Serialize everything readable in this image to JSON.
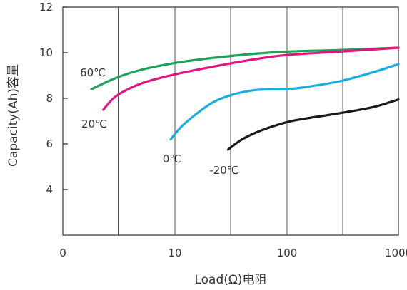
{
  "chart_data": {
    "type": "line",
    "title": "",
    "xlabel": "Load(Ω)电阻",
    "ylabel": "Capacity(Ah)容量",
    "x_scale": "log",
    "x_tick_labels": [
      "0",
      "10",
      "100",
      "1000"
    ],
    "y_tick_labels": [
      "4",
      "6",
      "8",
      "10",
      "12"
    ],
    "ylim": [
      2,
      12
    ],
    "grid": "vertical",
    "colors": {
      "-20℃": "#1a1a1a",
      "0℃": "#18aee4",
      "20℃": "#e4147f",
      "60℃": "#1ea25a",
      "axis": "#333333",
      "grid": "#555555"
    },
    "series": [
      {
        "name": "60℃",
        "x": [
          1.8,
          3,
          5,
          10,
          20,
          50,
          100,
          300,
          1000
        ],
        "y": [
          8.4,
          8.9,
          9.25,
          9.55,
          9.75,
          9.95,
          10.05,
          10.12,
          10.22
        ]
      },
      {
        "name": "20℃",
        "x": [
          2.3,
          3,
          5,
          10,
          20,
          50,
          100,
          300,
          1000
        ],
        "y": [
          7.5,
          8.1,
          8.65,
          9.05,
          9.35,
          9.7,
          9.9,
          10.05,
          10.22
        ]
      },
      {
        "name": "0℃",
        "x": [
          9.2,
          12,
          20,
          30,
          50,
          80,
          100,
          150,
          300,
          600,
          1000
        ],
        "y": [
          6.2,
          6.85,
          7.7,
          8.1,
          8.35,
          8.4,
          8.4,
          8.5,
          8.75,
          9.15,
          9.5
        ]
      },
      {
        "name": "-20℃",
        "x": [
          30,
          40,
          60,
          100,
          150,
          300,
          600,
          1000
        ],
        "y": [
          5.75,
          6.2,
          6.6,
          6.95,
          7.12,
          7.35,
          7.62,
          7.95
        ]
      }
    ]
  }
}
